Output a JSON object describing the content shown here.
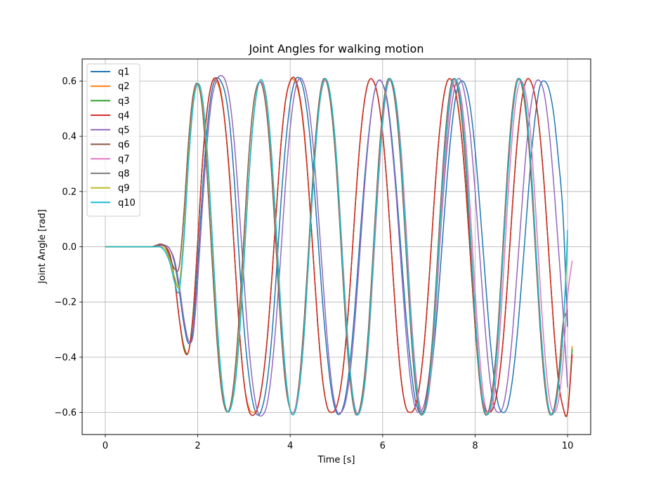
{
  "chart_data": {
    "type": "line",
    "title": "Joint Angles for walking motion",
    "xlabel": "Time [s]",
    "ylabel": "Joint Angle [rad]",
    "xlim": [
      -0.5,
      10.5
    ],
    "ylim": [
      -0.68,
      0.68
    ],
    "xticks": [
      0,
      2,
      4,
      6,
      8,
      10
    ],
    "yticks": [
      -0.6,
      -0.4,
      -0.2,
      0.0,
      0.2,
      0.4,
      0.6
    ],
    "xtick_labels": [
      "0",
      "2",
      "4",
      "6",
      "8",
      "10"
    ],
    "ytick_labels": [
      "−0.6",
      "−0.4",
      "−0.2",
      "0.0",
      "0.2",
      "0.4",
      "0.6"
    ],
    "grid": true,
    "legend_position": "upper-left",
    "x_step": 0.1,
    "series": [
      {
        "name": "q1",
        "color": "#1f77b4",
        "values": [
          0.0,
          0.0,
          0.0,
          0.0,
          0.0,
          0.0,
          0.0,
          0.0,
          0.0,
          0.0,
          0.0,
          0.002,
          0.005,
          0.005,
          -0.01,
          -0.06,
          -0.16,
          -0.28,
          -0.35,
          -0.3,
          -0.06,
          0.2,
          0.42,
          0.56,
          0.61,
          0.6,
          0.55,
          0.43,
          0.22,
          -0.05,
          -0.29,
          -0.46,
          -0.57,
          -0.61,
          -0.58,
          -0.49,
          -0.33,
          -0.1,
          0.16,
          0.37,
          0.52,
          0.6,
          0.61,
          0.56,
          0.44,
          0.26,
          0.03,
          -0.2,
          -0.39,
          -0.53,
          -0.6,
          -0.6,
          -0.54,
          -0.41,
          -0.22,
          0.01,
          0.23,
          0.41,
          0.54,
          0.6,
          0.59,
          0.53,
          0.39,
          0.2,
          -0.02,
          -0.24,
          -0.42,
          -0.55,
          -0.6,
          -0.59,
          -0.52,
          -0.38,
          -0.19,
          0.04,
          0.26,
          0.44,
          0.56,
          0.6,
          0.58,
          0.5,
          0.35,
          0.15,
          -0.07,
          -0.29,
          -0.46,
          -0.57,
          -0.6,
          -0.58,
          -0.49,
          -0.34,
          -0.14,
          0.08,
          0.3,
          0.47,
          0.58,
          0.6,
          0.57,
          0.48,
          0.32,
          0.12,
          -0.29
        ]
      },
      {
        "name": "q2",
        "color": "#ff7f0e",
        "values": [
          0.0,
          0.0,
          0.0,
          0.0,
          0.0,
          0.0,
          0.0,
          0.0,
          0.0,
          0.0,
          0.0,
          0.003,
          0.005,
          0.0,
          -0.03,
          -0.12,
          -0.26,
          -0.36,
          -0.38,
          -0.24,
          0.02,
          0.3,
          0.49,
          0.59,
          0.6,
          0.55,
          0.43,
          0.22,
          -0.04,
          -0.3,
          -0.49,
          -0.58,
          -0.6,
          -0.58,
          -0.49,
          -0.34,
          -0.12,
          0.13,
          0.37,
          0.53,
          0.6,
          0.6,
          0.54,
          0.41,
          0.21,
          -0.04,
          -0.29,
          -0.48,
          -0.58,
          -0.6,
          -0.58,
          -0.5,
          -0.35,
          -0.13,
          0.13,
          0.36,
          0.52,
          0.6,
          0.6,
          0.54,
          0.41,
          0.21,
          -0.04,
          -0.29,
          -0.48,
          -0.58,
          -0.6,
          -0.58,
          -0.5,
          -0.35,
          -0.13,
          0.13,
          0.36,
          0.52,
          0.6,
          0.6,
          0.54,
          0.41,
          0.21,
          -0.04,
          -0.29,
          -0.48,
          -0.58,
          -0.6,
          -0.58,
          -0.5,
          -0.35,
          -0.13,
          0.13,
          0.36,
          0.52,
          0.6,
          0.6,
          0.54,
          0.41,
          0.21,
          -0.04,
          -0.29,
          -0.48,
          -0.58,
          -0.6,
          -0.36
        ]
      },
      {
        "name": "q3",
        "color": "#2ca02c",
        "values": [
          0.0,
          0.0,
          0.0,
          0.0,
          0.0,
          0.0,
          0.0,
          0.0,
          0.0,
          0.0,
          0.0,
          0.003,
          0.006,
          0.0,
          -0.03,
          -0.12,
          -0.26,
          -0.36,
          -0.38,
          -0.24,
          0.02,
          0.3,
          0.49,
          0.59,
          0.61,
          0.56,
          0.43,
          0.23,
          -0.04,
          -0.3,
          -0.49,
          -0.59,
          -0.61,
          -0.58,
          -0.49,
          -0.34,
          -0.12,
          0.13,
          0.37,
          0.53,
          0.6,
          0.61,
          0.55,
          0.42,
          0.21,
          -0.04,
          -0.29,
          -0.48,
          -0.58,
          -0.6,
          -0.58,
          -0.5,
          -0.35,
          -0.13,
          0.13,
          0.36,
          0.52,
          0.6,
          0.6,
          0.54,
          0.41,
          0.21,
          -0.04,
          -0.29,
          -0.48,
          -0.58,
          -0.6,
          -0.58,
          -0.5,
          -0.35,
          -0.13,
          0.13,
          0.36,
          0.52,
          0.6,
          0.6,
          0.54,
          0.41,
          0.21,
          -0.04,
          -0.29,
          -0.48,
          -0.58,
          -0.6,
          -0.58,
          -0.5,
          -0.35,
          -0.13,
          0.13,
          0.36,
          0.52,
          0.6,
          0.6,
          0.54,
          0.41,
          0.21,
          -0.04,
          -0.29,
          -0.48,
          -0.58,
          -0.6,
          -0.37
        ]
      },
      {
        "name": "q4",
        "color": "#d62728",
        "values": [
          0.0,
          0.0,
          0.0,
          0.0,
          0.0,
          0.0,
          0.0,
          0.0,
          0.0,
          0.0,
          0.0,
          0.003,
          0.006,
          0.0,
          -0.03,
          -0.12,
          -0.26,
          -0.37,
          -0.38,
          -0.25,
          0.02,
          0.3,
          0.49,
          0.59,
          0.61,
          0.56,
          0.43,
          0.23,
          -0.04,
          -0.3,
          -0.49,
          -0.59,
          -0.61,
          -0.58,
          -0.49,
          -0.34,
          -0.12,
          0.13,
          0.37,
          0.53,
          0.6,
          0.61,
          0.55,
          0.42,
          0.21,
          -0.04,
          -0.29,
          -0.48,
          -0.58,
          -0.6,
          -0.58,
          -0.5,
          -0.35,
          -0.13,
          0.13,
          0.36,
          0.52,
          0.6,
          0.6,
          0.54,
          0.41,
          0.21,
          -0.04,
          -0.29,
          -0.48,
          -0.58,
          -0.6,
          -0.58,
          -0.5,
          -0.35,
          -0.13,
          0.13,
          0.36,
          0.52,
          0.6,
          0.6,
          0.54,
          0.41,
          0.21,
          -0.04,
          -0.29,
          -0.48,
          -0.58,
          -0.6,
          -0.58,
          -0.5,
          -0.35,
          -0.13,
          0.13,
          0.36,
          0.52,
          0.6,
          0.6,
          0.54,
          0.41,
          0.21,
          -0.04,
          -0.29,
          -0.48,
          -0.58,
          -0.6,
          -0.39
        ]
      },
      {
        "name": "q5",
        "color": "#9467bd",
        "values": [
          0.0,
          0.0,
          0.0,
          0.0,
          0.0,
          0.0,
          0.0,
          0.0,
          0.0,
          0.0,
          0.0,
          0.002,
          0.004,
          0.004,
          -0.01,
          -0.05,
          -0.14,
          -0.26,
          -0.34,
          -0.32,
          -0.12,
          0.14,
          0.37,
          0.53,
          0.6,
          0.62,
          0.6,
          0.52,
          0.36,
          0.13,
          -0.12,
          -0.35,
          -0.51,
          -0.6,
          -0.61,
          -0.57,
          -0.45,
          -0.26,
          -0.02,
          0.23,
          0.43,
          0.56,
          0.61,
          0.59,
          0.51,
          0.36,
          0.14,
          -0.1,
          -0.33,
          -0.5,
          -0.59,
          -0.6,
          -0.56,
          -0.45,
          -0.27,
          -0.04,
          0.2,
          0.4,
          0.54,
          0.6,
          0.59,
          0.52,
          0.37,
          0.17,
          -0.07,
          -0.3,
          -0.48,
          -0.58,
          -0.6,
          -0.57,
          -0.47,
          -0.3,
          -0.08,
          0.16,
          0.37,
          0.52,
          0.6,
          0.6,
          0.53,
          0.4,
          0.2,
          -0.03,
          -0.26,
          -0.45,
          -0.57,
          -0.6,
          -0.58,
          -0.49,
          -0.33,
          -0.11,
          0.12,
          0.34,
          0.5,
          0.59,
          0.6,
          0.55,
          0.42,
          0.23,
          0.0,
          -0.23,
          -0.51
        ]
      },
      {
        "name": "q6",
        "color": "#8c564b",
        "values": [
          0.0,
          0.0,
          0.0,
          0.0,
          0.0,
          0.0,
          0.0,
          0.0,
          0.0,
          0.0,
          0.0,
          0.005,
          0.01,
          0.0,
          -0.04,
          -0.08,
          -0.07,
          0.12,
          0.38,
          0.55,
          0.59,
          0.5,
          0.27,
          -0.02,
          -0.3,
          -0.5,
          -0.59,
          -0.58,
          -0.46,
          -0.24,
          0.04,
          0.32,
          0.51,
          0.59,
          0.58,
          0.47,
          0.26,
          -0.02,
          -0.3,
          -0.5,
          -0.59,
          -0.59,
          -0.48,
          -0.27,
          0.0,
          0.28,
          0.49,
          0.6,
          0.59,
          0.48,
          0.28,
          0.0,
          -0.28,
          -0.49,
          -0.6,
          -0.59,
          -0.48,
          -0.28,
          0.0,
          0.28,
          0.49,
          0.6,
          0.59,
          0.48,
          0.28,
          0.0,
          -0.28,
          -0.49,
          -0.6,
          -0.59,
          -0.48,
          -0.28,
          0.0,
          0.28,
          0.49,
          0.6,
          0.59,
          0.48,
          0.28,
          0.0,
          -0.28,
          -0.49,
          -0.6,
          -0.59,
          -0.48,
          -0.28,
          0.0,
          0.28,
          0.49,
          0.6,
          0.59,
          0.48,
          0.28,
          0.0,
          -0.28,
          -0.49,
          -0.6,
          -0.59,
          -0.48,
          -0.28,
          -0.23
        ]
      },
      {
        "name": "q7",
        "color": "#e377c2",
        "values": [
          0.0,
          0.0,
          0.0,
          0.0,
          0.0,
          0.0,
          0.0,
          0.0,
          0.0,
          0.0,
          0.0,
          0.0,
          0.0,
          -0.01,
          -0.05,
          -0.11,
          -0.14,
          0.05,
          0.32,
          0.52,
          0.59,
          0.53,
          0.34,
          0.06,
          -0.24,
          -0.46,
          -0.58,
          -0.59,
          -0.5,
          -0.31,
          -0.04,
          0.24,
          0.46,
          0.58,
          0.59,
          0.5,
          0.31,
          0.04,
          -0.25,
          -0.47,
          -0.59,
          -0.59,
          -0.5,
          -0.31,
          -0.04,
          0.24,
          0.46,
          0.58,
          0.6,
          0.51,
          0.33,
          0.06,
          -0.22,
          -0.45,
          -0.58,
          -0.6,
          -0.52,
          -0.34,
          -0.07,
          0.21,
          0.44,
          0.58,
          0.6,
          0.52,
          0.35,
          0.09,
          -0.2,
          -0.43,
          -0.57,
          -0.6,
          -0.53,
          -0.36,
          -0.1,
          0.18,
          0.42,
          0.57,
          0.6,
          0.54,
          0.38,
          0.12,
          -0.16,
          -0.4,
          -0.56,
          -0.6,
          -0.55,
          -0.39,
          -0.14,
          0.15,
          0.39,
          0.55,
          0.6,
          0.55,
          0.41,
          0.16,
          -0.12,
          -0.37,
          -0.54,
          -0.6,
          -0.56,
          -0.42,
          -0.18,
          -0.05
        ]
      },
      {
        "name": "q8",
        "color": "#7f7f7f",
        "values": [
          0.0,
          0.0,
          0.0,
          0.0,
          0.0,
          0.0,
          0.0,
          0.0,
          0.0,
          0.0,
          0.0,
          0.0,
          0.0,
          -0.01,
          -0.05,
          -0.11,
          -0.14,
          0.05,
          0.32,
          0.52,
          0.59,
          0.53,
          0.34,
          0.06,
          -0.24,
          -0.46,
          -0.58,
          -0.59,
          -0.5,
          -0.31,
          -0.04,
          0.24,
          0.46,
          0.58,
          0.6,
          0.51,
          0.32,
          0.05,
          -0.24,
          -0.46,
          -0.59,
          -0.6,
          -0.51,
          -0.32,
          -0.04,
          0.24,
          0.46,
          0.59,
          0.6,
          0.51,
          0.32,
          0.04,
          -0.24,
          -0.46,
          -0.59,
          -0.6,
          -0.51,
          -0.32,
          -0.04,
          0.24,
          0.46,
          0.59,
          0.6,
          0.51,
          0.32,
          0.04,
          -0.24,
          -0.46,
          -0.59,
          -0.6,
          -0.51,
          -0.32,
          -0.04,
          0.24,
          0.46,
          0.59,
          0.6,
          0.51,
          0.32,
          0.04,
          -0.24,
          -0.46,
          -0.59,
          -0.6,
          -0.51,
          -0.32,
          -0.04,
          0.24,
          0.46,
          0.59,
          0.6,
          0.51,
          0.32,
          0.04,
          -0.24,
          -0.46,
          -0.59,
          -0.6,
          -0.51,
          -0.32,
          0.02
        ]
      },
      {
        "name": "q9",
        "color": "#bcbd22",
        "values": [
          0.0,
          0.0,
          0.0,
          0.0,
          0.0,
          0.0,
          0.0,
          0.0,
          0.0,
          0.0,
          0.0,
          0.0,
          0.0,
          -0.01,
          -0.05,
          -0.11,
          -0.14,
          0.05,
          0.32,
          0.52,
          0.59,
          0.53,
          0.34,
          0.06,
          -0.24,
          -0.46,
          -0.58,
          -0.59,
          -0.5,
          -0.31,
          -0.04,
          0.24,
          0.46,
          0.58,
          0.6,
          0.51,
          0.32,
          0.05,
          -0.24,
          -0.46,
          -0.59,
          -0.6,
          -0.51,
          -0.32,
          -0.04,
          0.24,
          0.46,
          0.59,
          0.6,
          0.51,
          0.32,
          0.04,
          -0.24,
          -0.46,
          -0.59,
          -0.6,
          -0.51,
          -0.32,
          -0.04,
          0.24,
          0.46,
          0.59,
          0.6,
          0.51,
          0.32,
          0.04,
          -0.24,
          -0.46,
          -0.59,
          -0.6,
          -0.51,
          -0.32,
          -0.04,
          0.24,
          0.46,
          0.59,
          0.6,
          0.51,
          0.32,
          0.04,
          -0.24,
          -0.46,
          -0.59,
          -0.6,
          -0.51,
          -0.32,
          -0.04,
          0.24,
          0.46,
          0.59,
          0.6,
          0.51,
          0.32,
          0.04,
          -0.24,
          -0.46,
          -0.59,
          -0.6,
          -0.51,
          -0.32,
          0.03
        ]
      },
      {
        "name": "q10",
        "color": "#17becf",
        "values": [
          0.0,
          0.0,
          0.0,
          0.0,
          0.0,
          0.0,
          0.0,
          0.0,
          0.0,
          0.0,
          0.0,
          0.0,
          -0.002,
          -0.02,
          -0.06,
          -0.13,
          -0.16,
          0.02,
          0.3,
          0.51,
          0.59,
          0.54,
          0.36,
          0.08,
          -0.22,
          -0.45,
          -0.58,
          -0.59,
          -0.51,
          -0.33,
          -0.06,
          0.23,
          0.45,
          0.58,
          0.6,
          0.52,
          0.33,
          0.06,
          -0.23,
          -0.46,
          -0.59,
          -0.6,
          -0.51,
          -0.32,
          -0.04,
          0.24,
          0.46,
          0.59,
          0.6,
          0.51,
          0.32,
          0.04,
          -0.24,
          -0.46,
          -0.59,
          -0.6,
          -0.51,
          -0.32,
          -0.04,
          0.24,
          0.46,
          0.59,
          0.6,
          0.51,
          0.32,
          0.04,
          -0.24,
          -0.46,
          -0.59,
          -0.6,
          -0.51,
          -0.32,
          -0.04,
          0.24,
          0.46,
          0.59,
          0.6,
          0.51,
          0.32,
          0.04,
          -0.24,
          -0.46,
          -0.59,
          -0.6,
          -0.51,
          -0.32,
          -0.04,
          0.24,
          0.46,
          0.59,
          0.6,
          0.51,
          0.32,
          0.04,
          -0.24,
          -0.46,
          -0.59,
          -0.6,
          -0.51,
          -0.32,
          0.06
        ]
      }
    ]
  }
}
